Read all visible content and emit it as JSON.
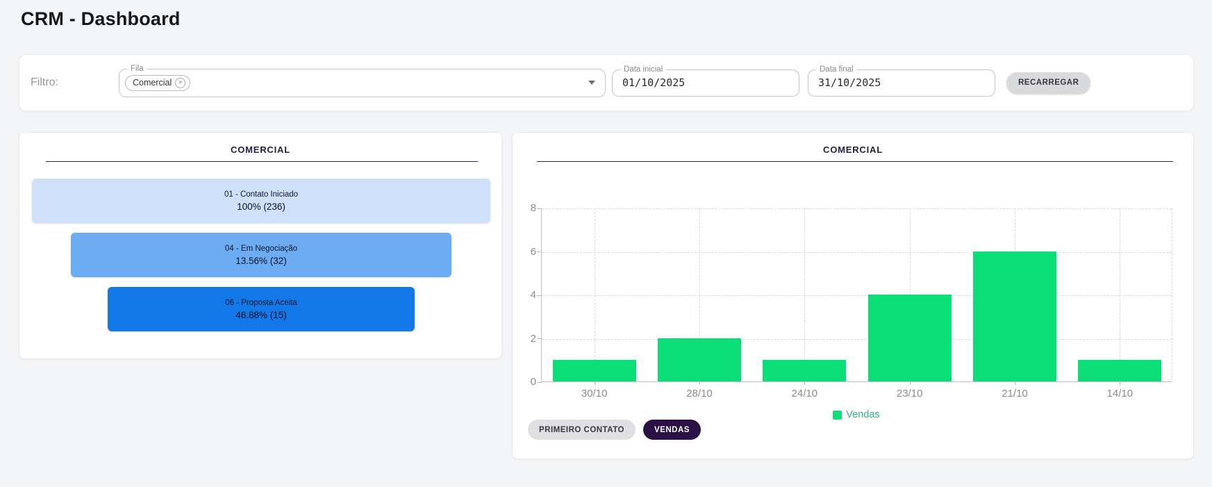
{
  "header": {
    "title": "CRM - Dashboard"
  },
  "filter": {
    "label": "Filtro:",
    "fila": {
      "label": "Fila",
      "selected_chip": "Comercial",
      "delete_icon": "circle-x",
      "dropdown_icon": "chevron-down"
    },
    "data_inicial": {
      "label": "Data inicial",
      "value": "01/10/2025"
    },
    "data_final": {
      "label": "Data final",
      "value": "31/10/2025"
    },
    "reload_button": "RECARREGAR"
  },
  "funnel_card": {
    "title": "COMERCIAL",
    "stages": [
      {
        "label": "01 - Contato Iniciado",
        "value": "100% (236)",
        "color": "#cfe1fa",
        "width_pct": 100
      },
      {
        "label": "04 - Em Negociação",
        "value": "13.56% (32)",
        "color": "#6bacf2",
        "width_pct": 83
      },
      {
        "label": "06 - Proposta Aceita",
        "value": "46.88% (15)",
        "color": "#1379e9",
        "width_pct": 67
      }
    ]
  },
  "chart_card": {
    "title": "COMERCIAL",
    "chips": [
      {
        "label": "PRIMEIRO CONTATO",
        "active": false
      },
      {
        "label": "VENDAS",
        "active": true
      }
    ],
    "chip_active_color": "#2a1044"
  },
  "chart_data": {
    "type": "bar",
    "title": "COMERCIAL",
    "categories": [
      "30/10",
      "28/10",
      "24/10",
      "23/10",
      "21/10",
      "14/10"
    ],
    "series": [
      {
        "name": "Vendas",
        "values": [
          1,
          2,
          1,
          4,
          6,
          1
        ],
        "color": "#0ade77"
      }
    ],
    "xlabel": "",
    "ylabel": "",
    "ylim": [
      0,
      8
    ],
    "yticks": [
      0,
      2,
      4,
      6,
      8
    ],
    "grid": "dashed",
    "legend_position": "bottom",
    "legend_text_color": "#2eb57d"
  }
}
